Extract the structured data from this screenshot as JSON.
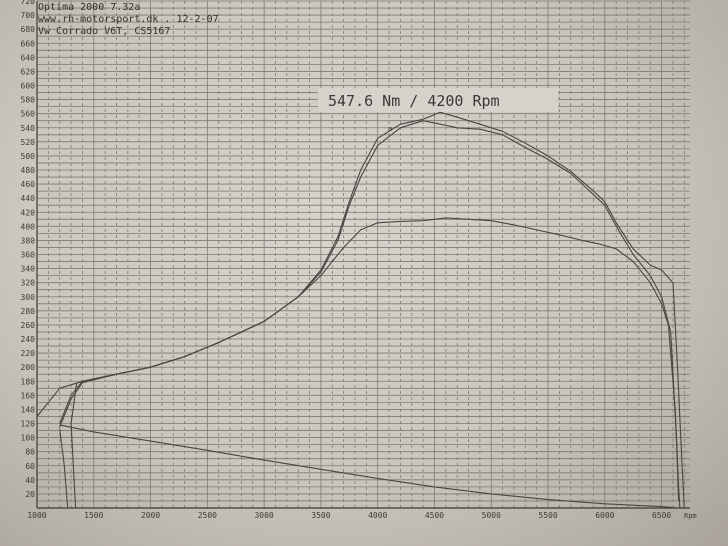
{
  "header": {
    "line1": "Optima 2000 7.32a",
    "line2": "www.rh-motorsport.dk   . 12-2-07",
    "line3": "Vw Corrado V6T, CS5167"
  },
  "annotation": "547.6 Nm / 4200 Rpm",
  "peak_marker": "a",
  "colors": {
    "paper": "#cfcac3",
    "grid": "#7e7a74",
    "ink": "#4a4540"
  },
  "chart_data": {
    "type": "line",
    "xlabel": "Rpm",
    "ylabel": "",
    "xlim": [
      1000,
      6750
    ],
    "ylim": [
      0,
      720
    ],
    "x_ticks": [
      1000,
      1500,
      2000,
      2500,
      3000,
      3500,
      4000,
      4500,
      5000,
      5500,
      6000,
      6500
    ],
    "x_tick_labels": [
      "1000",
      "1500",
      "2000",
      "2500",
      "3000",
      "3500",
      "4000",
      "4500",
      "5000",
      "5500",
      "6000",
      "6500"
    ],
    "y_tick_labels": [
      "20",
      "40",
      "60",
      "80",
      "100",
      "120",
      "140",
      "160",
      "180",
      "200",
      "220",
      "240",
      "260",
      "280",
      "300",
      "320",
      "340",
      "360",
      "380",
      "400",
      "420",
      "440",
      "460",
      "480",
      "500",
      "520",
      "540",
      "560",
      "580",
      "600",
      "620",
      "640",
      "660",
      "680",
      "700",
      "720"
    ],
    "grid": true,
    "series": [
      {
        "values": [
          [
            1000,
            130
          ],
          [
            1200,
            170
          ],
          [
            1400,
            180
          ],
          [
            1700,
            190
          ],
          [
            2000,
            200
          ],
          [
            2300,
            215
          ],
          [
            2600,
            235
          ],
          [
            3000,
            265
          ],
          [
            3300,
            300
          ],
          [
            3500,
            330
          ],
          [
            3700,
            370
          ],
          [
            3850,
            395
          ],
          [
            4000,
            405
          ],
          [
            4200,
            407
          ],
          [
            4400,
            408
          ],
          [
            4600,
            412
          ],
          [
            4800,
            410
          ],
          [
            5000,
            408
          ],
          [
            5200,
            402
          ],
          [
            5400,
            395
          ],
          [
            5600,
            388
          ],
          [
            5800,
            380
          ],
          [
            5950,
            375
          ],
          [
            6100,
            368
          ],
          [
            6250,
            350
          ],
          [
            6400,
            320
          ],
          [
            6500,
            290
          ],
          [
            6560,
            260
          ],
          [
            6620,
            140
          ],
          [
            6650,
            30
          ],
          [
            6660,
            0
          ]
        ]
      },
      {
        "values": [
          [
            1200,
            120
          ],
          [
            1300,
            160
          ],
          [
            1400,
            180
          ],
          [
            1700,
            190
          ],
          [
            2000,
            200
          ],
          [
            2300,
            215
          ],
          [
            2600,
            235
          ],
          [
            3000,
            265
          ],
          [
            3300,
            300
          ],
          [
            3500,
            335
          ],
          [
            3650,
            380
          ],
          [
            3750,
            430
          ],
          [
            3850,
            470
          ],
          [
            4000,
            515
          ],
          [
            4200,
            540
          ],
          [
            4400,
            550
          ],
          [
            4550,
            545
          ],
          [
            4700,
            540
          ],
          [
            4900,
            538
          ],
          [
            5100,
            530
          ],
          [
            5300,
            512
          ],
          [
            5500,
            495
          ],
          [
            5700,
            475
          ],
          [
            5900,
            445
          ],
          [
            6000,
            430
          ],
          [
            6100,
            400
          ],
          [
            6250,
            360
          ],
          [
            6400,
            330
          ],
          [
            6500,
            300
          ],
          [
            6580,
            250
          ],
          [
            6630,
            100
          ],
          [
            6650,
            10
          ]
        ]
      },
      {
        "values": [
          [
            1200,
            115
          ],
          [
            1300,
            155
          ],
          [
            1400,
            178
          ],
          [
            1700,
            190
          ],
          [
            2000,
            200
          ],
          [
            2300,
            215
          ],
          [
            2600,
            235
          ],
          [
            3000,
            265
          ],
          [
            3300,
            300
          ],
          [
            3500,
            338
          ],
          [
            3650,
            385
          ],
          [
            3750,
            435
          ],
          [
            3850,
            480
          ],
          [
            4000,
            525
          ],
          [
            4200,
            545
          ],
          [
            4400,
            552
          ],
          [
            4550,
            562
          ],
          [
            4700,
            555
          ],
          [
            4900,
            545
          ],
          [
            5100,
            535
          ],
          [
            5300,
            518
          ],
          [
            5500,
            500
          ],
          [
            5700,
            478
          ],
          [
            5900,
            450
          ],
          [
            6000,
            435
          ],
          [
            6100,
            405
          ],
          [
            6250,
            368
          ],
          [
            6400,
            345
          ],
          [
            6500,
            338
          ],
          [
            6600,
            320
          ],
          [
            6640,
            200
          ],
          [
            6680,
            60
          ],
          [
            6700,
            0
          ]
        ]
      },
      {
        "values": [
          [
            1200,
            118
          ],
          [
            1500,
            108
          ],
          [
            2000,
            95
          ],
          [
            2500,
            82
          ],
          [
            3000,
            68
          ],
          [
            3500,
            55
          ],
          [
            4000,
            42
          ],
          [
            4500,
            30
          ],
          [
            5000,
            20
          ],
          [
            5500,
            12
          ],
          [
            6000,
            6
          ],
          [
            6500,
            2
          ],
          [
            6650,
            0
          ]
        ]
      },
      {
        "values": [
          [
            1200,
            112
          ],
          [
            1240,
            60
          ],
          [
            1270,
            0
          ]
        ]
      },
      {
        "values": [
          [
            1350,
            178
          ],
          [
            1300,
            120
          ],
          [
            1320,
            60
          ],
          [
            1340,
            0
          ]
        ]
      }
    ]
  }
}
